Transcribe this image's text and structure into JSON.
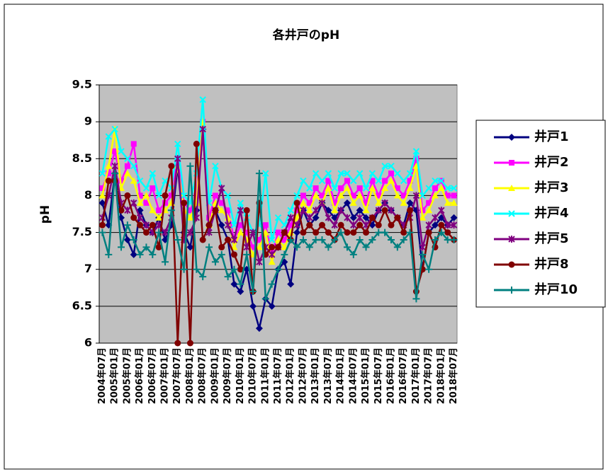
{
  "chart_data": {
    "type": "line",
    "title": "各井戸のpH",
    "y_label": "pH",
    "categories": [
      "2004年07月",
      null,
      "2005年01月",
      null,
      "2005年07月",
      null,
      "2006年01月",
      null,
      "2006年07月",
      null,
      "2007年01月",
      null,
      "2007年07月",
      null,
      "2008年01月",
      null,
      "2008年07月",
      null,
      "2009年01月",
      null,
      "2009年07月",
      null,
      "2010年01月",
      null,
      "2010年07月",
      null,
      "2011年01月",
      null,
      "2011年07月",
      null,
      "2012年01月",
      null,
      "2012年07月",
      null,
      "2013年01月",
      null,
      "2013年07月",
      null,
      "2014年01月",
      null,
      "2014年07月",
      null,
      "2015年01月",
      null,
      "2015年07月",
      null,
      "2016年01月",
      null,
      "2016年07月",
      null,
      "2017年01月",
      null,
      "2017年07月",
      null,
      "2018年01月",
      null,
      "2018年07月"
    ],
    "series": [
      {
        "name": "井戸1",
        "color": "#000080",
        "marker": "diamond",
        "values": [
          7.9,
          7.6,
          8.3,
          7.7,
          7.4,
          7.2,
          7.8,
          7.6,
          7.5,
          7.7,
          7.4,
          7.6,
          8.4,
          7.5,
          7.3,
          7.8,
          8.9,
          7.6,
          7.8,
          7.6,
          7.4,
          6.8,
          6.7,
          7.0,
          6.5,
          6.2,
          6.6,
          6.5,
          7.0,
          7.1,
          6.8,
          7.5,
          7.8,
          7.6,
          7.7,
          7.9,
          7.8,
          7.7,
          7.8,
          7.9,
          7.7,
          7.8,
          7.7,
          7.6,
          7.8,
          7.9,
          7.8,
          7.7,
          7.6,
          7.9,
          7.8,
          7.0,
          7.5,
          7.6,
          7.7,
          7.6,
          7.7
        ]
      },
      {
        "name": "井戸2",
        "color": "#ff00ff",
        "marker": "square",
        "values": [
          8.1,
          8.3,
          8.6,
          8.2,
          8.4,
          8.7,
          8.0,
          7.9,
          8.1,
          7.8,
          7.9,
          8.0,
          8.5,
          7.9,
          7.8,
          8.0,
          9.0,
          7.7,
          8.0,
          7.9,
          7.8,
          7.4,
          7.6,
          7.5,
          7.3,
          7.4,
          7.6,
          7.2,
          7.5,
          7.4,
          7.6,
          7.8,
          8.0,
          7.9,
          8.1,
          8.0,
          8.2,
          7.9,
          8.1,
          8.2,
          8.0,
          8.1,
          7.9,
          8.2,
          8.0,
          8.2,
          8.3,
          8.1,
          8.0,
          8.2,
          8.5,
          7.8,
          7.9,
          8.1,
          8.2,
          8.0,
          8.0
        ]
      },
      {
        "name": "井戸3",
        "color": "#ffff00",
        "marker": "triangle",
        "values": [
          8.0,
          8.4,
          8.9,
          8.1,
          8.3,
          8.2,
          7.9,
          8.0,
          7.8,
          7.7,
          7.8,
          7.9,
          8.4,
          7.8,
          7.7,
          7.9,
          9.0,
          7.6,
          7.9,
          7.8,
          7.7,
          7.3,
          7.5,
          7.4,
          7.2,
          7.3,
          7.5,
          7.1,
          7.4,
          7.3,
          7.5,
          7.7,
          7.9,
          7.8,
          8.0,
          7.9,
          8.1,
          7.8,
          8.0,
          8.1,
          7.9,
          8.0,
          7.8,
          8.1,
          7.9,
          8.1,
          8.2,
          8.0,
          7.9,
          8.1,
          8.4,
          7.7,
          7.8,
          8.0,
          8.1,
          7.9,
          7.9
        ]
      },
      {
        "name": "井戸4",
        "color": "#00ffff",
        "marker": "x",
        "values": [
          8.3,
          8.8,
          8.9,
          8.6,
          8.5,
          8.4,
          8.2,
          8.1,
          8.3,
          8.0,
          8.2,
          8.1,
          8.7,
          8.0,
          7.9,
          8.3,
          9.3,
          7.9,
          8.4,
          8.1,
          8.0,
          7.6,
          7.9,
          7.7,
          7.5,
          7.6,
          8.3,
          7.4,
          7.7,
          7.6,
          7.8,
          8.0,
          8.2,
          8.1,
          8.3,
          8.2,
          8.3,
          8.1,
          8.3,
          8.3,
          8.2,
          8.3,
          8.1,
          8.3,
          8.2,
          8.4,
          8.4,
          8.3,
          8.2,
          8.3,
          8.6,
          8.0,
          8.1,
          8.2,
          8.2,
          8.1,
          8.1
        ]
      },
      {
        "name": "井戸5",
        "color": "#800080",
        "marker": "star",
        "values": [
          7.7,
          8.0,
          8.4,
          7.9,
          7.8,
          7.9,
          7.7,
          7.6,
          7.5,
          7.6,
          7.5,
          7.7,
          8.5,
          7.4,
          7.5,
          7.7,
          8.9,
          7.5,
          7.8,
          8.1,
          7.6,
          7.4,
          7.8,
          7.3,
          7.5,
          7.1,
          7.3,
          7.2,
          7.3,
          7.5,
          7.7,
          7.6,
          7.8,
          7.7,
          7.8,
          7.9,
          7.7,
          7.6,
          7.8,
          7.7,
          7.6,
          7.7,
          7.6,
          7.7,
          7.8,
          7.9,
          7.8,
          7.7,
          7.6,
          7.7,
          8.0,
          7.3,
          7.6,
          7.7,
          7.8,
          7.6,
          7.6
        ]
      },
      {
        "name": "井戸8",
        "color": "#800000",
        "marker": "circle",
        "values": [
          7.6,
          8.2,
          8.2,
          7.8,
          8.0,
          7.7,
          7.6,
          7.5,
          7.6,
          7.3,
          8.0,
          8.4,
          6.0,
          7.9,
          6.0,
          8.7,
          7.4,
          7.6,
          7.8,
          7.3,
          7.4,
          7.2,
          7.0,
          7.8,
          6.7,
          7.9,
          7.2,
          7.3,
          7.3,
          7.5,
          7.4,
          7.9,
          7.5,
          7.6,
          7.5,
          7.6,
          7.5,
          7.4,
          7.6,
          7.5,
          7.5,
          7.6,
          7.5,
          7.7,
          7.6,
          7.8,
          7.6,
          7.7,
          7.5,
          7.8,
          6.7,
          7.0,
          7.5,
          7.3,
          7.6,
          7.5,
          7.4
        ]
      },
      {
        "name": "井戸10",
        "color": "#008080",
        "marker": "plus",
        "values": [
          7.5,
          7.2,
          8.3,
          7.3,
          7.6,
          7.4,
          7.2,
          7.3,
          7.2,
          7.5,
          7.1,
          7.8,
          7.4,
          7.0,
          8.4,
          7.0,
          6.9,
          7.3,
          7.1,
          7.2,
          6.9,
          7.0,
          6.8,
          7.2,
          6.7,
          8.3,
          6.6,
          6.8,
          7.0,
          7.2,
          7.4,
          7.3,
          7.4,
          7.3,
          7.4,
          7.4,
          7.3,
          7.4,
          7.5,
          7.3,
          7.2,
          7.4,
          7.3,
          7.4,
          7.5,
          7.5,
          7.4,
          7.3,
          7.4,
          7.5,
          6.6,
          7.2,
          7.0,
          7.4,
          7.5,
          7.4,
          7.4
        ]
      }
    ],
    "ylim": [
      6,
      9.5
    ],
    "yticks": [
      6,
      6.5,
      7,
      7.5,
      8,
      8.5,
      9,
      9.5
    ],
    "grid": true,
    "legend": "right",
    "plot_background": "#c0c0c0"
  }
}
